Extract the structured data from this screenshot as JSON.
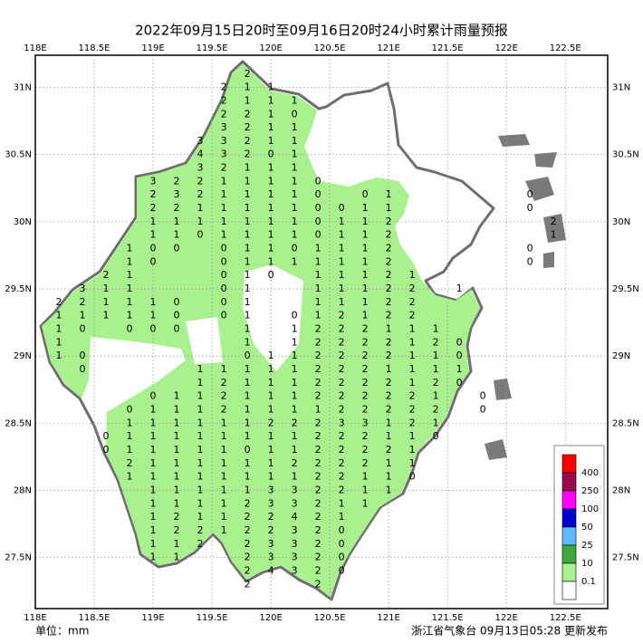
{
  "chart_data": {
    "type": "map",
    "title": "2022年09月15日20时至09月16日20时24小时累计雨量预报",
    "unit_label": "单位：mm",
    "footer": "浙江省气象台 09月13日05:28 更新发布",
    "xlim": [
      118,
      122.86
    ],
    "ylim": [
      27.12,
      31.24
    ],
    "xticks": [
      {
        "value": 118,
        "label": "118E"
      },
      {
        "value": 118.5,
        "label": "118.5E"
      },
      {
        "value": 119,
        "label": "119E"
      },
      {
        "value": 119.5,
        "label": "119.5E"
      },
      {
        "value": 120,
        "label": "120E"
      },
      {
        "value": 120.5,
        "label": "120.5E"
      },
      {
        "value": 121,
        "label": "121E"
      },
      {
        "value": 121.5,
        "label": "121.5E"
      },
      {
        "value": 122,
        "label": "122E"
      },
      {
        "value": 122.5,
        "label": "122.5E"
      }
    ],
    "yticks": [
      {
        "value": 31,
        "label": "31N"
      },
      {
        "value": 30.5,
        "label": "30.5N"
      },
      {
        "value": 30,
        "label": "30N"
      },
      {
        "value": 29.5,
        "label": "29.5N"
      },
      {
        "value": 29,
        "label": "29N"
      },
      {
        "value": 28.5,
        "label": "28.5N"
      },
      {
        "value": 28,
        "label": "28N"
      },
      {
        "value": 27.5,
        "label": "27.5N"
      }
    ],
    "grid": true,
    "legend": {
      "colors": [
        "#ff0000",
        "#9b0a4b",
        "#ff00ff",
        "#0000cc",
        "#61b8ff",
        "#3da93d",
        "#a9f08e",
        "#ffffff"
      ],
      "thresholds": [
        400,
        250,
        100,
        50,
        25,
        10,
        0.1
      ],
      "position": "lower right"
    },
    "lons": [
      118.2,
      118.4,
      118.6,
      118.8,
      119.0,
      119.2,
      119.4,
      119.6,
      119.8,
      120.0,
      120.2,
      120.4,
      120.6,
      120.8,
      121.0,
      121.2,
      121.4,
      121.6,
      121.8,
      122.0,
      122.2,
      122.4
    ],
    "lats": [
      31.1,
      31.0,
      30.9,
      30.8,
      30.7,
      30.6,
      30.5,
      30.4,
      30.3,
      30.2,
      30.1,
      30.0,
      29.9,
      29.8,
      29.7,
      29.6,
      29.5,
      29.4,
      29.3,
      29.2,
      29.1,
      29.0,
      28.9,
      28.8,
      28.7,
      28.6,
      28.5,
      28.4,
      28.3,
      28.2,
      28.1,
      28.0,
      27.9,
      27.8,
      27.7,
      27.6,
      27.5,
      27.4,
      27.3
    ],
    "values": [
      [
        null,
        null,
        null,
        null,
        null,
        null,
        null,
        null,
        2,
        null,
        null,
        null,
        null,
        null,
        null,
        null,
        null,
        null,
        null,
        null,
        null,
        null
      ],
      [
        null,
        null,
        null,
        null,
        null,
        null,
        null,
        2,
        1,
        1,
        null,
        null,
        null,
        null,
        null,
        null,
        null,
        null,
        null,
        null,
        null,
        null
      ],
      [
        null,
        null,
        null,
        null,
        null,
        null,
        null,
        2,
        1,
        1,
        1,
        null,
        null,
        null,
        null,
        null,
        null,
        null,
        null,
        null,
        null,
        null
      ],
      [
        null,
        null,
        null,
        null,
        null,
        null,
        null,
        2,
        2,
        1,
        0,
        null,
        null,
        null,
        null,
        null,
        null,
        null,
        null,
        null,
        null,
        null
      ],
      [
        null,
        null,
        null,
        null,
        null,
        null,
        null,
        3,
        2,
        1,
        1,
        null,
        null,
        null,
        null,
        null,
        null,
        null,
        null,
        null,
        null,
        null
      ],
      [
        null,
        null,
        null,
        null,
        null,
        null,
        3,
        3,
        2,
        1,
        1,
        null,
        null,
        null,
        null,
        null,
        null,
        null,
        null,
        null,
        null,
        null
      ],
      [
        null,
        null,
        null,
        null,
        null,
        null,
        4,
        3,
        2,
        0,
        1,
        null,
        null,
        null,
        null,
        null,
        null,
        null,
        null,
        null,
        null,
        null
      ],
      [
        null,
        null,
        null,
        null,
        null,
        null,
        3,
        2,
        1,
        1,
        1,
        null,
        null,
        null,
        null,
        null,
        null,
        null,
        null,
        null,
        null,
        null
      ],
      [
        null,
        null,
        null,
        null,
        3,
        2,
        2,
        1,
        1,
        1,
        1,
        0,
        null,
        null,
        null,
        null,
        null,
        null,
        null,
        null,
        null,
        null
      ],
      [
        null,
        null,
        null,
        null,
        2,
        3,
        2,
        1,
        1,
        1,
        1,
        0,
        null,
        0,
        1,
        null,
        null,
        null,
        null,
        null,
        0,
        null
      ],
      [
        null,
        null,
        null,
        null,
        2,
        2,
        1,
        1,
        1,
        1,
        1,
        0,
        0,
        1,
        1,
        null,
        null,
        null,
        null,
        null,
        0,
        null
      ],
      [
        null,
        null,
        null,
        null,
        1,
        1,
        1,
        1,
        1,
        1,
        1,
        0,
        1,
        1,
        2,
        null,
        null,
        null,
        null,
        null,
        null,
        2
      ],
      [
        null,
        null,
        null,
        null,
        1,
        1,
        0,
        1,
        1,
        1,
        1,
        0,
        1,
        1,
        2,
        null,
        null,
        null,
        null,
        null,
        null,
        1
      ],
      [
        null,
        null,
        null,
        1,
        0,
        0,
        null,
        0,
        1,
        1,
        0,
        1,
        1,
        1,
        2,
        null,
        null,
        null,
        null,
        null,
        0,
        null
      ],
      [
        null,
        null,
        null,
        1,
        0,
        null,
        null,
        0,
        1,
        1,
        1,
        1,
        1,
        1,
        2,
        null,
        null,
        null,
        null,
        null,
        0,
        null
      ],
      [
        null,
        null,
        2,
        1,
        null,
        null,
        null,
        0,
        1,
        0,
        null,
        1,
        1,
        1,
        2,
        1,
        null,
        null,
        null,
        null,
        null,
        null
      ],
      [
        null,
        3,
        1,
        1,
        null,
        null,
        null,
        0,
        1,
        null,
        null,
        1,
        1,
        1,
        2,
        2,
        null,
        1,
        null,
        null,
        null,
        null
      ],
      [
        2,
        2,
        1,
        1,
        1,
        0,
        null,
        0,
        1,
        null,
        null,
        1,
        1,
        1,
        2,
        2,
        null,
        null,
        null,
        null,
        null,
        null
      ],
      [
        1,
        1,
        1,
        1,
        1,
        0,
        null,
        0,
        1,
        null,
        0,
        1,
        2,
        1,
        2,
        2,
        null,
        null,
        null,
        null,
        null,
        null
      ],
      [
        1,
        0,
        null,
        0,
        0,
        0,
        null,
        null,
        1,
        null,
        1,
        2,
        2,
        2,
        1,
        1,
        1,
        null,
        null,
        null,
        null,
        null
      ],
      [
        1,
        null,
        null,
        null,
        null,
        null,
        null,
        null,
        1,
        null,
        1,
        2,
        2,
        2,
        2,
        1,
        2,
        0,
        null,
        null,
        null,
        null
      ],
      [
        1,
        0,
        null,
        null,
        null,
        null,
        null,
        null,
        0,
        1,
        1,
        2,
        2,
        2,
        2,
        1,
        1,
        0,
        null,
        null,
        null,
        null
      ],
      [
        null,
        0,
        null,
        null,
        null,
        null,
        1,
        1,
        1,
        1,
        1,
        2,
        2,
        2,
        1,
        1,
        1,
        1,
        null,
        null,
        null,
        null
      ],
      [
        null,
        null,
        null,
        null,
        null,
        null,
        1,
        2,
        1,
        1,
        1,
        2,
        2,
        2,
        2,
        1,
        2,
        0,
        null,
        null,
        null,
        null
      ],
      [
        null,
        null,
        null,
        null,
        0,
        1,
        1,
        2,
        1,
        1,
        1,
        2,
        2,
        2,
        2,
        2,
        1,
        null,
        0,
        null,
        null,
        null
      ],
      [
        null,
        null,
        null,
        0,
        1,
        1,
        1,
        2,
        1,
        1,
        1,
        1,
        2,
        2,
        2,
        2,
        2,
        null,
        0,
        null,
        null,
        null
      ],
      [
        null,
        null,
        null,
        1,
        1,
        1,
        1,
        1,
        1,
        2,
        2,
        2,
        3,
        3,
        1,
        2,
        1,
        null,
        null,
        null,
        null,
        null
      ],
      [
        null,
        null,
        0,
        1,
        1,
        1,
        1,
        1,
        1,
        1,
        1,
        2,
        2,
        2,
        1,
        1,
        0,
        null,
        null,
        null,
        null,
        null
      ],
      [
        null,
        null,
        0,
        1,
        1,
        1,
        1,
        1,
        0,
        1,
        1,
        2,
        2,
        2,
        2,
        1,
        null,
        null,
        null,
        null,
        null,
        null
      ],
      [
        null,
        null,
        null,
        2,
        1,
        1,
        1,
        1,
        1,
        1,
        2,
        2,
        2,
        2,
        1,
        1,
        null,
        null,
        null,
        null,
        null,
        null
      ],
      [
        null,
        null,
        null,
        1,
        1,
        1,
        1,
        1,
        1,
        1,
        1,
        2,
        2,
        1,
        1,
        0,
        null,
        null,
        null,
        null,
        null,
        null
      ],
      [
        null,
        null,
        null,
        null,
        1,
        1,
        1,
        1,
        1,
        3,
        3,
        2,
        2,
        1,
        1,
        null,
        null,
        null,
        null,
        null,
        null,
        null
      ],
      [
        null,
        null,
        null,
        null,
        1,
        1,
        1,
        1,
        2,
        3,
        3,
        2,
        1,
        1,
        null,
        null,
        null,
        null,
        null,
        null,
        null,
        null
      ],
      [
        null,
        null,
        null,
        null,
        1,
        2,
        1,
        1,
        2,
        2,
        4,
        2,
        1,
        null,
        null,
        null,
        null,
        null,
        null,
        null,
        null,
        null
      ],
      [
        null,
        null,
        null,
        null,
        1,
        2,
        2,
        1,
        2,
        2,
        3,
        2,
        0,
        null,
        null,
        null,
        null,
        null,
        null,
        null,
        null,
        null
      ],
      [
        null,
        null,
        null,
        null,
        1,
        1,
        2,
        null,
        2,
        3,
        3,
        2,
        0,
        null,
        null,
        null,
        null,
        null,
        null,
        null,
        null,
        null
      ],
      [
        null,
        null,
        null,
        null,
        1,
        1,
        null,
        null,
        2,
        3,
        3,
        2,
        0,
        null,
        null,
        null,
        null,
        null,
        null,
        null,
        null,
        null
      ],
      [
        null,
        null,
        null,
        null,
        null,
        null,
        null,
        null,
        2,
        4,
        3,
        2,
        0,
        null,
        null,
        null,
        null,
        null,
        null,
        null,
        null,
        null
      ],
      [
        null,
        null,
        null,
        null,
        null,
        null,
        null,
        null,
        2,
        null,
        null,
        2,
        null,
        null,
        null,
        null,
        null,
        null,
        null,
        null,
        null,
        null
      ]
    ]
  }
}
